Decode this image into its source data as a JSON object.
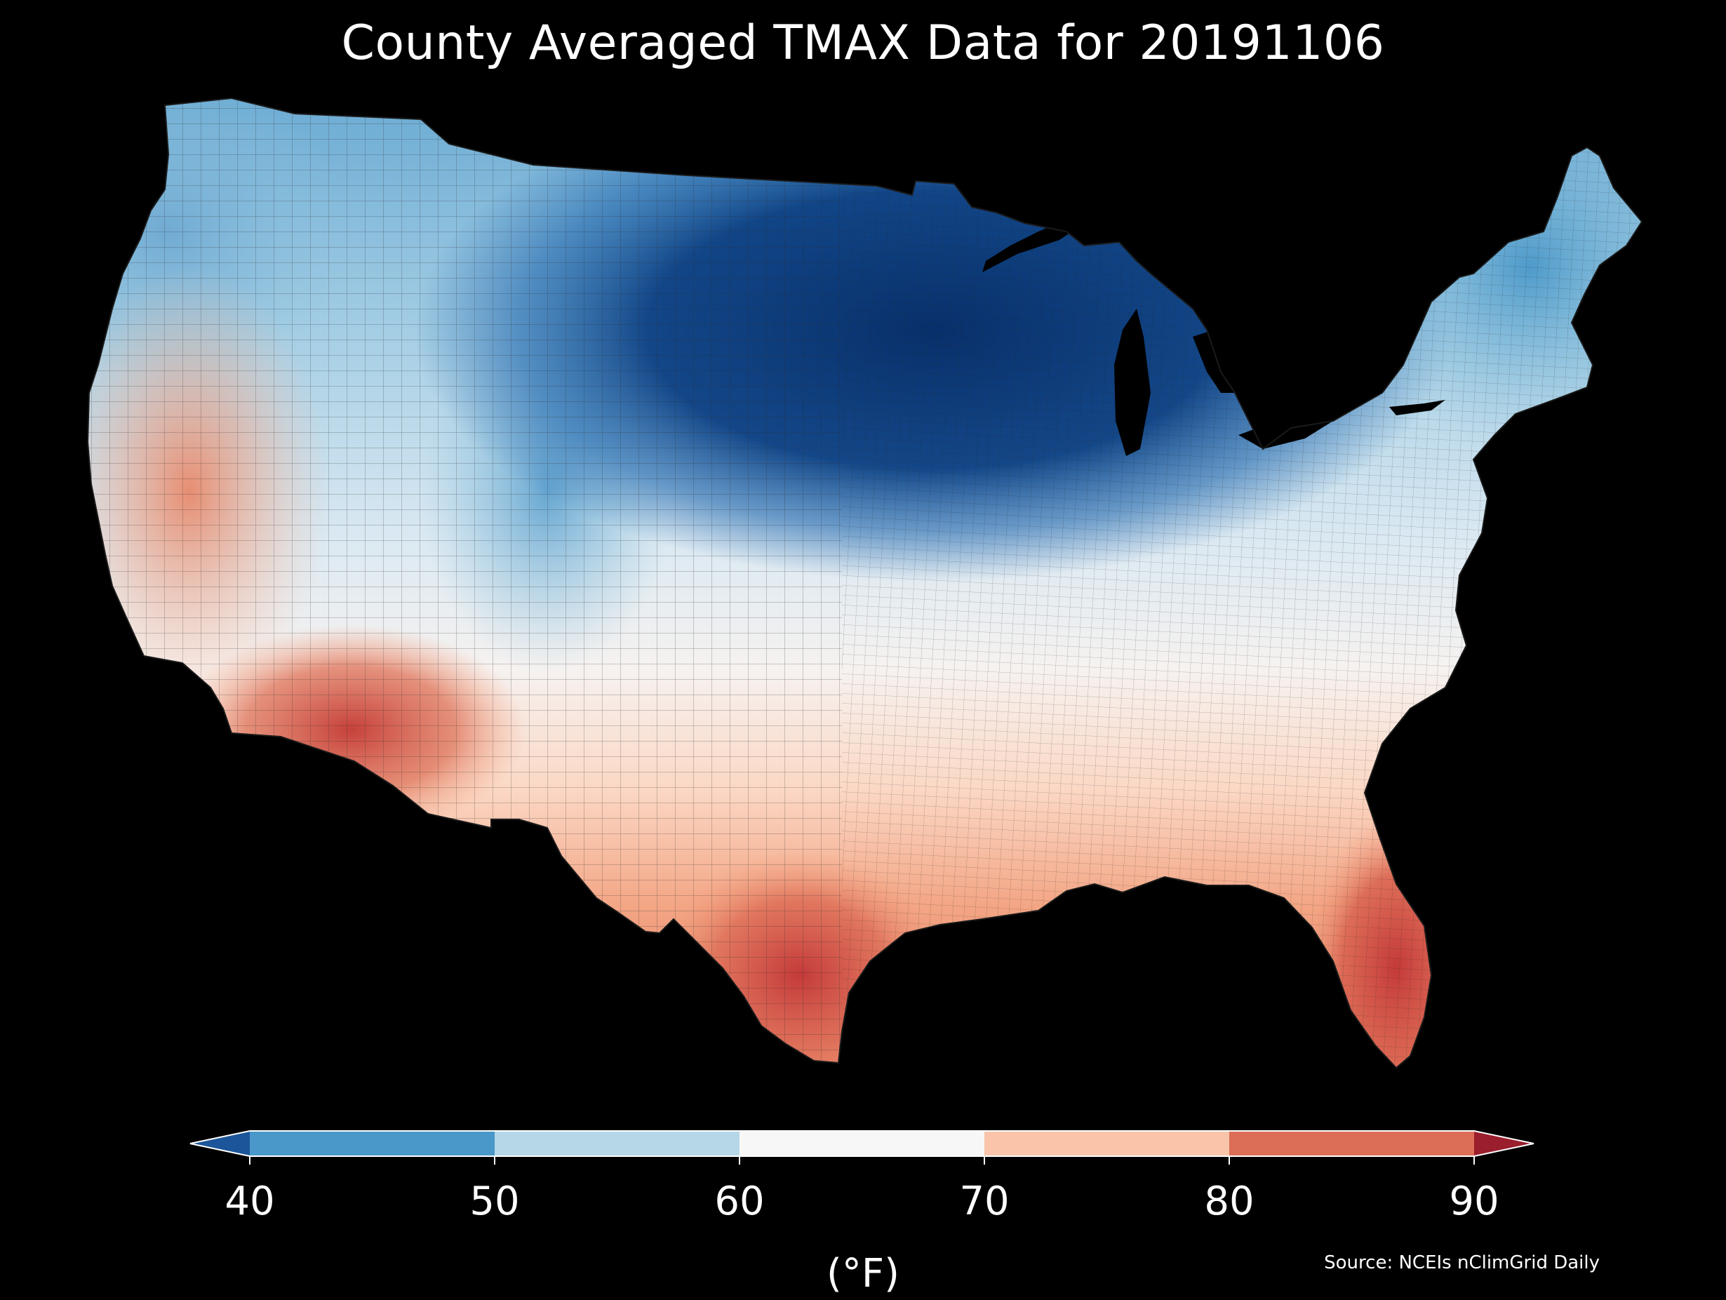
{
  "title": "County Averaged TMAX Data for 20191106",
  "colorbar": {
    "unit_label": "(°F)",
    "ticks": [
      "40",
      "50",
      "60",
      "70",
      "80",
      "90"
    ],
    "bins": [
      {
        "from": 40,
        "to": 50,
        "color": "#4a98c9"
      },
      {
        "from": 50,
        "to": 60,
        "color": "#b5d7e8"
      },
      {
        "from": 60,
        "to": 70,
        "color": "#f7f7f7"
      },
      {
        "from": 70,
        "to": 80,
        "color": "#f9c4a9"
      },
      {
        "from": 80,
        "to": 90,
        "color": "#dc6e57"
      }
    ],
    "under_color": "#1c5599",
    "over_color": "#9a1e2d",
    "extend": "both"
  },
  "source": "Source: NCEIs nClimGrid Daily",
  "map_data": {
    "type": "choropleth",
    "region": "Contiguous United States",
    "units": "counties",
    "variable": "TMAX",
    "date": "20191106",
    "colors": {
      "background": "#000000",
      "very_cold": "#08306b",
      "cold": "#2166ac",
      "cool": "#4393c3",
      "mild_cool": "#92c5de",
      "neutral": "#f7f7f7",
      "mild_warm": "#fddbc7",
      "warm": "#f4a582",
      "hot": "#d6604d",
      "very_hot": "#b2182b",
      "county_border": "#333333"
    },
    "regional_pattern": [
      {
        "region": "Northern Plains / Upper Midwest",
        "range": "below 40"
      },
      {
        "region": "Pacific Northwest / New England",
        "range": "40-55"
      },
      {
        "region": "Great Basin / Central Plains / Ohio Valley",
        "range": "55-70"
      },
      {
        "region": "California / Southern Plains / Southeast",
        "range": "70-80"
      },
      {
        "region": "Desert Southwest / South Texas / South Florida",
        "range": "80-90"
      }
    ]
  }
}
